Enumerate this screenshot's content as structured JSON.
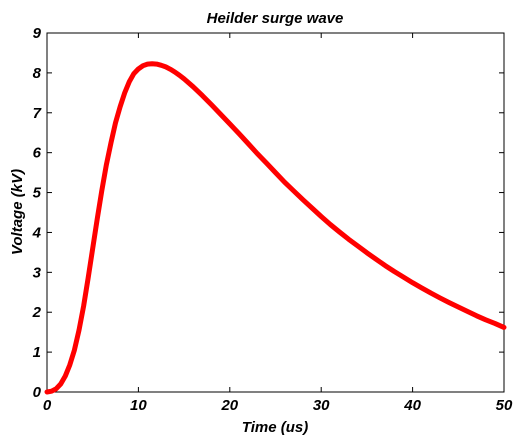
{
  "chart_data": {
    "type": "line",
    "title": "Heilder surge wave",
    "xlabel": "Time (us)",
    "ylabel": "Voltage (kV)",
    "xlim": [
      0,
      50
    ],
    "ylim": [
      0,
      9
    ],
    "xticks": [
      0,
      10,
      20,
      30,
      40,
      50
    ],
    "yticks": [
      0,
      1,
      2,
      3,
      4,
      5,
      6,
      7,
      8,
      9
    ],
    "grid": false,
    "line_color": "#ff0000",
    "series": [
      {
        "x": [
          0,
          0.5,
          1,
          1.5,
          2,
          2.5,
          3,
          3.5,
          4,
          4.5,
          5,
          5.5,
          6,
          6.5,
          7,
          7.5,
          8,
          8.5,
          9,
          9.5,
          10,
          10.5,
          11,
          11.5,
          12,
          12.5,
          13,
          13.5,
          14,
          14.5,
          15,
          16,
          17,
          18,
          19,
          20,
          21,
          22,
          23,
          24,
          25,
          26,
          27,
          28,
          29,
          30,
          31,
          32,
          33,
          34,
          35,
          36,
          37,
          38,
          39,
          40,
          41,
          42,
          43,
          44,
          45,
          46,
          47,
          48,
          49,
          50
        ],
        "y": [
          0,
          0.02,
          0.08,
          0.2,
          0.4,
          0.68,
          1.05,
          1.55,
          2.15,
          2.85,
          3.6,
          4.35,
          5.05,
          5.7,
          6.25,
          6.75,
          7.15,
          7.5,
          7.78,
          7.98,
          8.1,
          8.18,
          8.22,
          8.23,
          8.22,
          8.19,
          8.15,
          8.09,
          8.02,
          7.94,
          7.85,
          7.65,
          7.43,
          7.2,
          6.96,
          6.72,
          6.48,
          6.23,
          5.98,
          5.74,
          5.5,
          5.26,
          5.04,
          4.82,
          4.61,
          4.4,
          4.2,
          4.01,
          3.83,
          3.66,
          3.49,
          3.33,
          3.17,
          3.02,
          2.88,
          2.74,
          2.61,
          2.48,
          2.36,
          2.24,
          2.13,
          2.02,
          1.91,
          1.81,
          1.72,
          1.62
        ]
      }
    ]
  }
}
